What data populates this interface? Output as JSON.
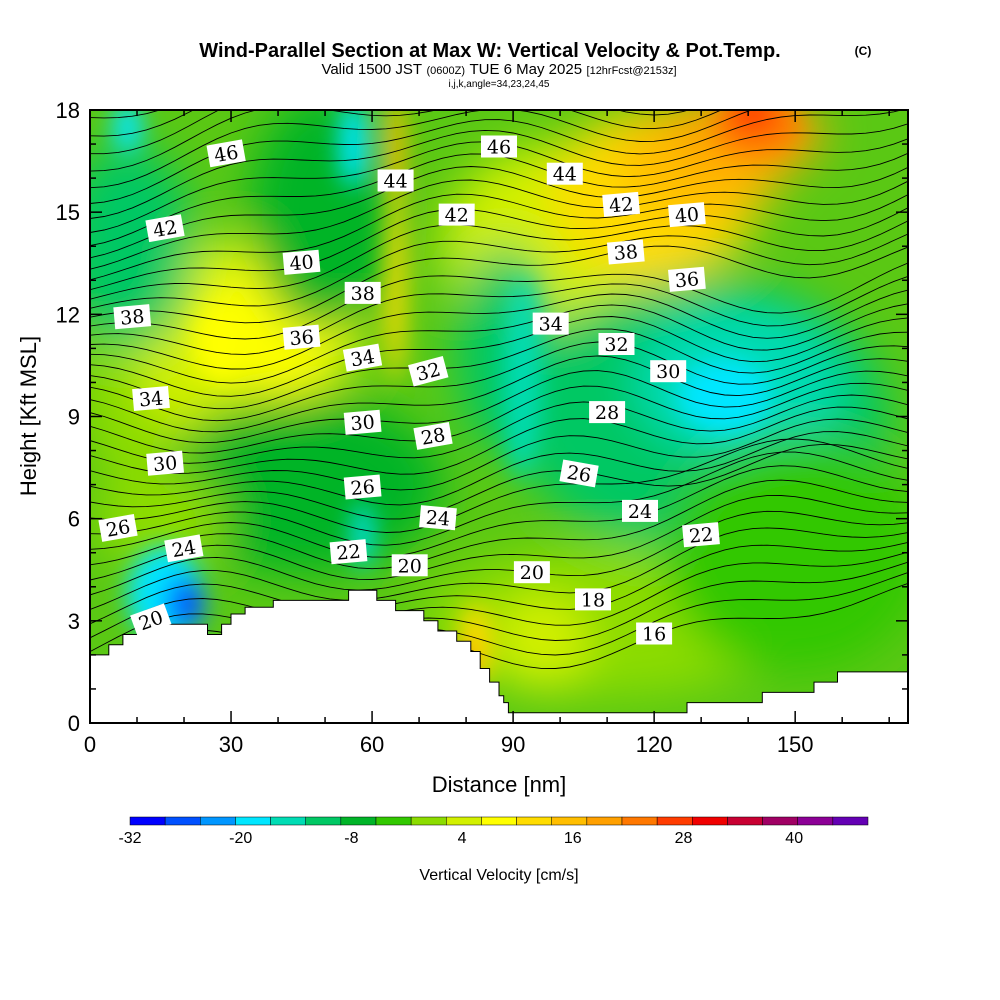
{
  "title": {
    "main": "Wind-Parallel Section at Max W: Vertical Velocity & Pot.Temp.",
    "copyright": "(C)",
    "valid_prefix": "Valid 1500 JST",
    "valid_z": "(0600Z)",
    "valid_date": "TUE 6 May 2025",
    "forecast": "[12hrFcst@2153z]",
    "indices": "i,j,k,angle=34,23,24,45"
  },
  "chart_data": {
    "type": "heatmap",
    "xlabel": "Distance [nm]",
    "ylabel": "Height [Kft MSL]",
    "xlim": [
      0,
      174
    ],
    "ylim": [
      0,
      18
    ],
    "x_ticks": [
      0,
      30,
      60,
      90,
      120,
      150
    ],
    "y_ticks": [
      0,
      3,
      6,
      9,
      12,
      15,
      18
    ],
    "x_tick_labels": [
      "0",
      "30",
      "60",
      "90",
      "120",
      "150"
    ],
    "y_tick_labels": [
      "0",
      "3",
      "6",
      "9",
      "12",
      "15",
      "18"
    ],
    "colorbar": {
      "title": "Vertical Velocity [cm/s]",
      "bounds": [
        -32,
        48
      ],
      "step": 4,
      "tick_values": [
        -32,
        -20,
        -8,
        4,
        16,
        28,
        40
      ],
      "tick_labels": [
        "-32",
        "-20",
        "-8",
        "4",
        "16",
        "28",
        "40"
      ],
      "colors": [
        "#0000ff",
        "#0050ff",
        "#0096ff",
        "#00e6ff",
        "#00dcb4",
        "#00c864",
        "#00b428",
        "#32c800",
        "#8cdc00",
        "#d2f000",
        "#ffff00",
        "#ffdc00",
        "#ffbe00",
        "#ffa000",
        "#ff7800",
        "#ff3c00",
        "#f00000",
        "#c80032",
        "#a00064",
        "#8c0096",
        "#6400b4"
      ]
    },
    "vertical_velocity_features": [
      {
        "kind": "downdraft",
        "x": 21,
        "y": 3.5,
        "value": -30
      },
      {
        "kind": "updraft",
        "x": 65,
        "y": 15.5,
        "value": 20
      },
      {
        "kind": "updraft",
        "x": 140,
        "y": 17.5,
        "value": 30
      },
      {
        "kind": "downdraft",
        "x": 134,
        "y": 9.5,
        "value": -18
      }
    ],
    "isentrope_labels": [
      {
        "text": "46",
        "x": 29,
        "y": 16.7,
        "rot": -10
      },
      {
        "text": "46",
        "x": 87,
        "y": 16.9,
        "rot": 0
      },
      {
        "text": "44",
        "x": 65,
        "y": 15.9,
        "rot": 0
      },
      {
        "text": "44",
        "x": 101,
        "y": 16.1,
        "rot": 0
      },
      {
        "text": "42",
        "x": 16,
        "y": 14.5,
        "rot": -10
      },
      {
        "text": "42",
        "x": 78,
        "y": 14.9,
        "rot": 0
      },
      {
        "text": "42",
        "x": 113,
        "y": 15.2,
        "rot": -5
      },
      {
        "text": "40",
        "x": 45,
        "y": 13.5,
        "rot": -5
      },
      {
        "text": "40",
        "x": 127,
        "y": 14.9,
        "rot": -5
      },
      {
        "text": "38",
        "x": 9,
        "y": 11.9,
        "rot": -5
      },
      {
        "text": "38",
        "x": 58,
        "y": 12.6,
        "rot": 0
      },
      {
        "text": "38",
        "x": 114,
        "y": 13.8,
        "rot": -5
      },
      {
        "text": "36",
        "x": 45,
        "y": 11.3,
        "rot": -5
      },
      {
        "text": "36",
        "x": 127,
        "y": 13.0,
        "rot": -5
      },
      {
        "text": "34",
        "x": 13,
        "y": 9.5,
        "rot": -5
      },
      {
        "text": "34",
        "x": 58,
        "y": 10.7,
        "rot": -10
      },
      {
        "text": "34",
        "x": 98,
        "y": 11.7,
        "rot": 0
      },
      {
        "text": "32",
        "x": 72,
        "y": 10.3,
        "rot": -15
      },
      {
        "text": "32",
        "x": 112,
        "y": 11.1,
        "rot": 0
      },
      {
        "text": "30",
        "x": 16,
        "y": 7.6,
        "rot": -5
      },
      {
        "text": "30",
        "x": 58,
        "y": 8.8,
        "rot": -5
      },
      {
        "text": "30",
        "x": 123,
        "y": 10.3,
        "rot": 0
      },
      {
        "text": "28",
        "x": 73,
        "y": 8.4,
        "rot": -10
      },
      {
        "text": "28",
        "x": 110,
        "y": 9.1,
        "rot": 0
      },
      {
        "text": "26",
        "x": 6,
        "y": 5.7,
        "rot": -10
      },
      {
        "text": "26",
        "x": 58,
        "y": 6.9,
        "rot": -5
      },
      {
        "text": "26",
        "x": 104,
        "y": 7.3,
        "rot": 10
      },
      {
        "text": "24",
        "x": 20,
        "y": 5.1,
        "rot": -10
      },
      {
        "text": "24",
        "x": 74,
        "y": 6.0,
        "rot": 5
      },
      {
        "text": "24",
        "x": 117,
        "y": 6.2,
        "rot": 0
      },
      {
        "text": "22",
        "x": 55,
        "y": 5.0,
        "rot": -5
      },
      {
        "text": "22",
        "x": 130,
        "y": 5.5,
        "rot": -5
      },
      {
        "text": "20",
        "x": 13,
        "y": 3.0,
        "rot": -20
      },
      {
        "text": "20",
        "x": 68,
        "y": 4.6,
        "rot": 0
      },
      {
        "text": "20",
        "x": 94,
        "y": 4.4,
        "rot": 0
      },
      {
        "text": "18",
        "x": 107,
        "y": 3.6,
        "rot": 0
      },
      {
        "text": "16",
        "x": 120,
        "y": 2.6,
        "rot": 0
      }
    ],
    "terrain_profile": [
      [
        0,
        2.0
      ],
      [
        4,
        2.0
      ],
      [
        4,
        2.3
      ],
      [
        7,
        2.3
      ],
      [
        7,
        2.6
      ],
      [
        10,
        2.6
      ],
      [
        10,
        3.1
      ],
      [
        13,
        3.1
      ],
      [
        13,
        2.9
      ],
      [
        25,
        2.9
      ],
      [
        25,
        2.6
      ],
      [
        28,
        2.6
      ],
      [
        28,
        2.9
      ],
      [
        30,
        2.9
      ],
      [
        30,
        3.2
      ],
      [
        33,
        3.2
      ],
      [
        33,
        3.4
      ],
      [
        39,
        3.4
      ],
      [
        39,
        3.6
      ],
      [
        55,
        3.6
      ],
      [
        55,
        3.9
      ],
      [
        61,
        3.9
      ],
      [
        61,
        3.6
      ],
      [
        65,
        3.6
      ],
      [
        65,
        3.3
      ],
      [
        71,
        3.3
      ],
      [
        71,
        3.0
      ],
      [
        74,
        3.0
      ],
      [
        74,
        2.7
      ],
      [
        78,
        2.7
      ],
      [
        78,
        2.4
      ],
      [
        81,
        2.4
      ],
      [
        81,
        2.1
      ],
      [
        83,
        2.1
      ],
      [
        83,
        1.6
      ],
      [
        85,
        1.6
      ],
      [
        85,
        1.2
      ],
      [
        87,
        1.2
      ],
      [
        87,
        0.8
      ],
      [
        88,
        0.8
      ],
      [
        88,
        0.6
      ],
      [
        89,
        0.6
      ],
      [
        89,
        0.3
      ],
      [
        127,
        0.3
      ],
      [
        127,
        0.6
      ],
      [
        143,
        0.6
      ],
      [
        143,
        0.9
      ],
      [
        154,
        0.9
      ],
      [
        154,
        1.2
      ],
      [
        159,
        1.2
      ],
      [
        159,
        1.5
      ],
      [
        174,
        1.5
      ]
    ]
  }
}
